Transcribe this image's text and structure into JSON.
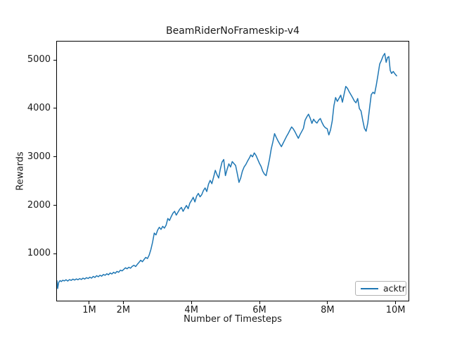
{
  "colors": {
    "line": "#1f77b4",
    "spine": "#000000",
    "text": "#1a1a1a",
    "legend_border": "#b3b3b3",
    "background": "#ffffff"
  },
  "chart_data": {
    "type": "line",
    "title": "BeamRiderNoFrameskip-v4",
    "xlabel": "Number of Timesteps",
    "ylabel": "Rewards",
    "xlim_timesteps": [
      30000,
      10400000
    ],
    "ylim": [
      18,
      5393
    ],
    "grid": false,
    "x_ticks": [
      {
        "value_timesteps": 1000000,
        "label": "1M"
      },
      {
        "value_timesteps": 2000000,
        "label": "2M"
      },
      {
        "value_timesteps": 4000000,
        "label": "4M"
      },
      {
        "value_timesteps": 6000000,
        "label": "6M"
      },
      {
        "value_timesteps": 8000000,
        "label": "8M"
      },
      {
        "value_timesteps": 10000000,
        "label": "10M"
      }
    ],
    "y_ticks": [
      1000,
      2000,
      3000,
      4000,
      5000
    ],
    "legend": {
      "position": "lower right"
    },
    "series": [
      {
        "name": "acktr",
        "color": "#1f77b4",
        "x_units": "millions of timesteps",
        "points": [
          [
            0.03,
            430
          ],
          [
            0.05,
            270
          ],
          [
            0.08,
            395
          ],
          [
            0.12,
            435
          ],
          [
            0.16,
            415
          ],
          [
            0.2,
            442
          ],
          [
            0.25,
            428
          ],
          [
            0.3,
            452
          ],
          [
            0.35,
            425
          ],
          [
            0.4,
            455
          ],
          [
            0.45,
            438
          ],
          [
            0.5,
            465
          ],
          [
            0.55,
            446
          ],
          [
            0.6,
            470
          ],
          [
            0.65,
            452
          ],
          [
            0.7,
            476
          ],
          [
            0.75,
            458
          ],
          [
            0.8,
            486
          ],
          [
            0.85,
            466
          ],
          [
            0.9,
            496
          ],
          [
            0.95,
            478
          ],
          [
            1.0,
            506
          ],
          [
            1.05,
            486
          ],
          [
            1.1,
            522
          ],
          [
            1.15,
            500
          ],
          [
            1.2,
            536
          ],
          [
            1.25,
            515
          ],
          [
            1.3,
            546
          ],
          [
            1.35,
            526
          ],
          [
            1.4,
            562
          ],
          [
            1.45,
            545
          ],
          [
            1.5,
            576
          ],
          [
            1.55,
            556
          ],
          [
            1.6,
            592
          ],
          [
            1.65,
            572
          ],
          [
            1.7,
            606
          ],
          [
            1.75,
            586
          ],
          [
            1.8,
            626
          ],
          [
            1.85,
            606
          ],
          [
            1.9,
            650
          ],
          [
            1.95,
            636
          ],
          [
            2.0,
            666
          ],
          [
            2.05,
            700
          ],
          [
            2.1,
            680
          ],
          [
            2.15,
            712
          ],
          [
            2.2,
            692
          ],
          [
            2.25,
            730
          ],
          [
            2.3,
            752
          ],
          [
            2.35,
            726
          ],
          [
            2.4,
            772
          ],
          [
            2.45,
            812
          ],
          [
            2.5,
            856
          ],
          [
            2.55,
            826
          ],
          [
            2.6,
            872
          ],
          [
            2.65,
            916
          ],
          [
            2.7,
            892
          ],
          [
            2.75,
            962
          ],
          [
            2.8,
            1080
          ],
          [
            2.85,
            1230
          ],
          [
            2.9,
            1420
          ],
          [
            2.95,
            1382
          ],
          [
            3.0,
            1482
          ],
          [
            3.05,
            1540
          ],
          [
            3.1,
            1496
          ],
          [
            3.15,
            1560
          ],
          [
            3.2,
            1522
          ],
          [
            3.25,
            1586
          ],
          [
            3.3,
            1722
          ],
          [
            3.35,
            1682
          ],
          [
            3.4,
            1762
          ],
          [
            3.45,
            1830
          ],
          [
            3.5,
            1872
          ],
          [
            3.55,
            1792
          ],
          [
            3.6,
            1852
          ],
          [
            3.65,
            1912
          ],
          [
            3.7,
            1952
          ],
          [
            3.75,
            1872
          ],
          [
            3.8,
            1936
          ],
          [
            3.85,
            1992
          ],
          [
            3.9,
            1926
          ],
          [
            3.95,
            2042
          ],
          [
            4.0,
            2096
          ],
          [
            4.05,
            2162
          ],
          [
            4.1,
            2066
          ],
          [
            4.15,
            2186
          ],
          [
            4.2,
            2242
          ],
          [
            4.25,
            2172
          ],
          [
            4.3,
            2216
          ],
          [
            4.35,
            2302
          ],
          [
            4.4,
            2356
          ],
          [
            4.45,
            2282
          ],
          [
            4.5,
            2432
          ],
          [
            4.55,
            2512
          ],
          [
            4.6,
            2446
          ],
          [
            4.65,
            2582
          ],
          [
            4.7,
            2722
          ],
          [
            4.75,
            2632
          ],
          [
            4.8,
            2562
          ],
          [
            4.85,
            2752
          ],
          [
            4.9,
            2892
          ],
          [
            4.95,
            2946
          ],
          [
            5.0,
            2612
          ],
          [
            5.05,
            2742
          ],
          [
            5.1,
            2856
          ],
          [
            5.15,
            2792
          ],
          [
            5.2,
            2902
          ],
          [
            5.25,
            2862
          ],
          [
            5.3,
            2822
          ],
          [
            5.35,
            2652
          ],
          [
            5.4,
            2472
          ],
          [
            5.45,
            2562
          ],
          [
            5.5,
            2702
          ],
          [
            5.55,
            2792
          ],
          [
            5.6,
            2842
          ],
          [
            5.65,
            2912
          ],
          [
            5.7,
            2972
          ],
          [
            5.75,
            3042
          ],
          [
            5.8,
            3002
          ],
          [
            5.85,
            3082
          ],
          [
            5.9,
            3032
          ],
          [
            5.95,
            2952
          ],
          [
            6.0,
            2872
          ],
          [
            6.05,
            2802
          ],
          [
            6.1,
            2702
          ],
          [
            6.15,
            2642
          ],
          [
            6.2,
            2612
          ],
          [
            6.25,
            2782
          ],
          [
            6.3,
            2952
          ],
          [
            6.35,
            3162
          ],
          [
            6.4,
            3312
          ],
          [
            6.45,
            3482
          ],
          [
            6.5,
            3402
          ],
          [
            6.55,
            3332
          ],
          [
            6.6,
            3272
          ],
          [
            6.65,
            3212
          ],
          [
            6.7,
            3282
          ],
          [
            6.75,
            3352
          ],
          [
            6.8,
            3422
          ],
          [
            6.85,
            3482
          ],
          [
            6.9,
            3552
          ],
          [
            6.95,
            3622
          ],
          [
            7.0,
            3582
          ],
          [
            7.05,
            3522
          ],
          [
            7.1,
            3452
          ],
          [
            7.15,
            3386
          ],
          [
            7.2,
            3462
          ],
          [
            7.25,
            3526
          ],
          [
            7.3,
            3592
          ],
          [
            7.35,
            3762
          ],
          [
            7.4,
            3832
          ],
          [
            7.45,
            3886
          ],
          [
            7.5,
            3802
          ],
          [
            7.55,
            3696
          ],
          [
            7.6,
            3782
          ],
          [
            7.65,
            3732
          ],
          [
            7.7,
            3702
          ],
          [
            7.75,
            3762
          ],
          [
            7.8,
            3796
          ],
          [
            7.85,
            3712
          ],
          [
            7.9,
            3642
          ],
          [
            7.95,
            3602
          ],
          [
            8.0,
            3586
          ],
          [
            8.05,
            3456
          ],
          [
            8.1,
            3562
          ],
          [
            8.15,
            3746
          ],
          [
            8.2,
            4062
          ],
          [
            8.25,
            4232
          ],
          [
            8.3,
            4152
          ],
          [
            8.35,
            4216
          ],
          [
            8.4,
            4282
          ],
          [
            8.45,
            4136
          ],
          [
            8.5,
            4302
          ],
          [
            8.55,
            4462
          ],
          [
            8.6,
            4422
          ],
          [
            8.65,
            4352
          ],
          [
            8.7,
            4292
          ],
          [
            8.75,
            4232
          ],
          [
            8.8,
            4162
          ],
          [
            8.85,
            4122
          ],
          [
            8.9,
            4212
          ],
          [
            8.95,
            4002
          ],
          [
            9.0,
            3952
          ],
          [
            9.05,
            3762
          ],
          [
            9.1,
            3592
          ],
          [
            9.15,
            3532
          ],
          [
            9.2,
            3706
          ],
          [
            9.25,
            4012
          ],
          [
            9.3,
            4292
          ],
          [
            9.35,
            4342
          ],
          [
            9.4,
            4312
          ],
          [
            9.45,
            4492
          ],
          [
            9.5,
            4702
          ],
          [
            9.55,
            4926
          ],
          [
            9.6,
            5002
          ],
          [
            9.65,
            5092
          ],
          [
            9.7,
            5146
          ],
          [
            9.74,
            4962
          ],
          [
            9.78,
            5062
          ],
          [
            9.82,
            5082
          ],
          [
            9.86,
            4792
          ],
          [
            9.9,
            4732
          ],
          [
            9.95,
            4772
          ],
          [
            10.0,
            4722
          ],
          [
            10.05,
            4682
          ]
        ]
      }
    ]
  }
}
